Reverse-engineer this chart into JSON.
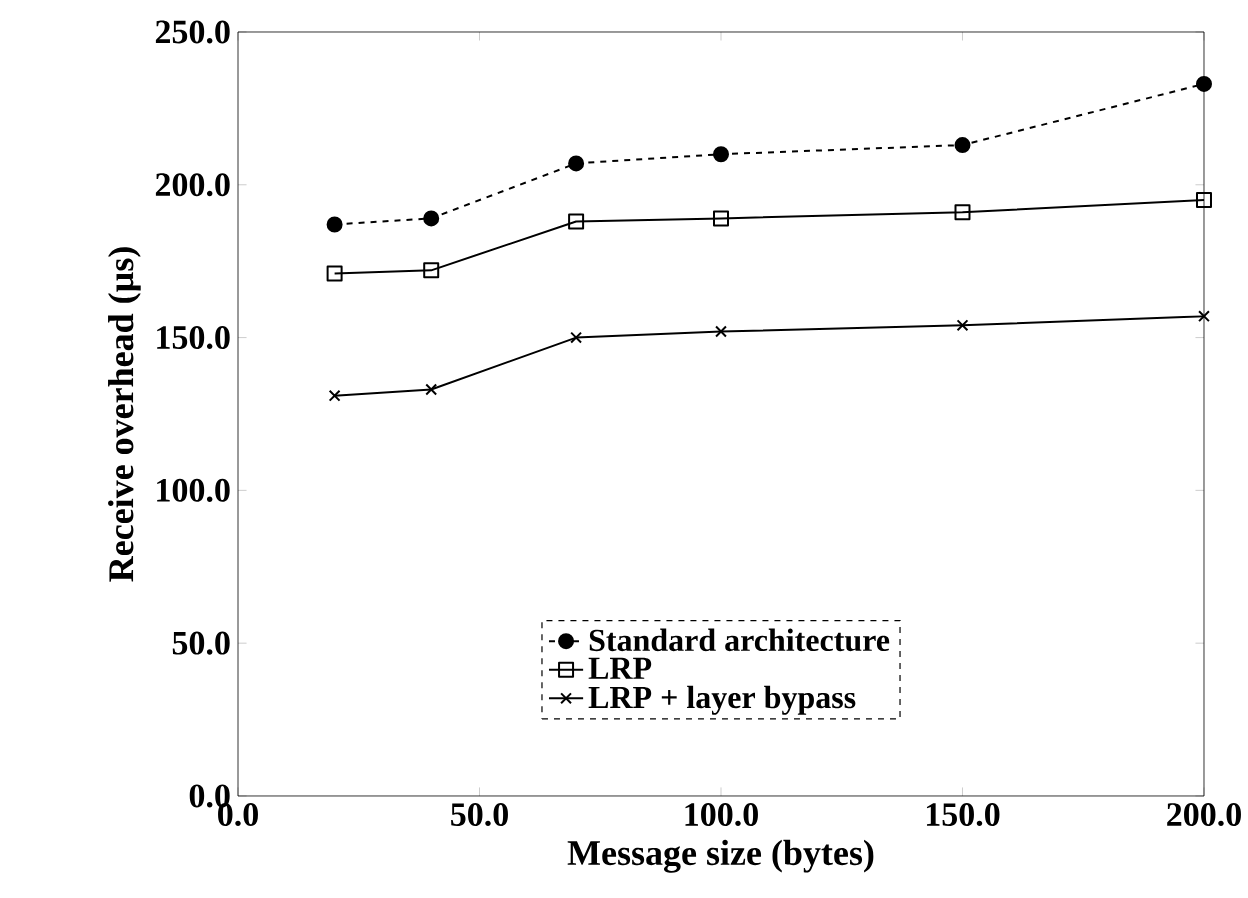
{
  "chart_data": {
    "type": "line",
    "xlabel": "Message size (bytes)",
    "ylabel": "Receive overhead (µs)",
    "x": [
      20,
      40,
      70,
      100,
      150,
      200
    ],
    "series": [
      {
        "name": "Standard architecture",
        "color": "#000000",
        "marker": "circle",
        "line_style": "dashed",
        "values": [
          187,
          189,
          207,
          210,
          213,
          233
        ]
      },
      {
        "name": "LRP",
        "color": "#000000",
        "marker": "square",
        "line_style": "solid",
        "values": [
          171,
          172,
          188,
          189,
          191,
          195
        ]
      },
      {
        "name": "LRP + layer bypass",
        "color": "#000000",
        "marker": "cross",
        "line_style": "solid",
        "values": [
          131,
          133,
          150,
          152,
          154,
          157
        ]
      }
    ],
    "xlim": [
      0,
      200
    ],
    "ylim": [
      0,
      250
    ],
    "xticks": [
      {
        "value": 0,
        "label": "0.0"
      },
      {
        "value": 50,
        "label": "50.0"
      },
      {
        "value": 100,
        "label": "100.0"
      },
      {
        "value": 150,
        "label": "150.0"
      },
      {
        "value": 200,
        "label": "200.0"
      }
    ],
    "yticks": [
      {
        "value": 0,
        "label": "0.0"
      },
      {
        "value": 50,
        "label": "50.0"
      },
      {
        "value": 100,
        "label": "100.0"
      },
      {
        "value": 150,
        "label": "150.0"
      },
      {
        "value": 200,
        "label": "200.0"
      },
      {
        "value": 250,
        "label": "250.0"
      }
    ],
    "grid": false,
    "legend": "bottom"
  }
}
